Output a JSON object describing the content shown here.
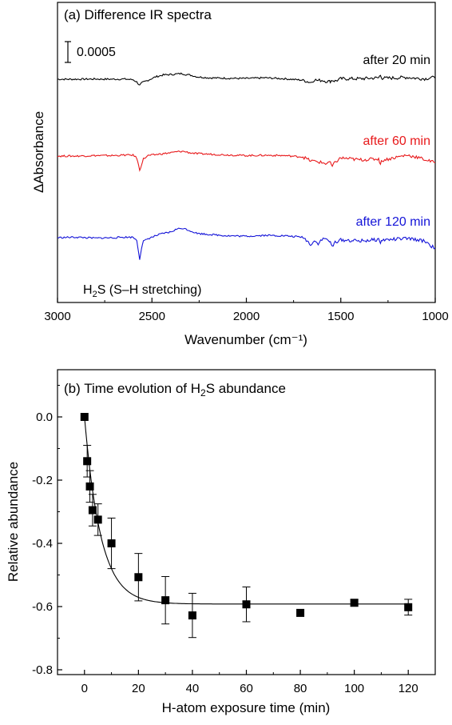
{
  "chart_data": [
    {
      "type": "line",
      "title": "(a) Difference IR spectra",
      "xlabel": "Wavenumber (cm⁻¹)",
      "ylabel": "ΔAbsorbance",
      "xlim": [
        3000,
        1000
      ],
      "x_ticks": [
        3000,
        2500,
        2000,
        1500,
        1000
      ],
      "scale_bar_label": "0.0005",
      "scale_bar_value": 0.0005,
      "y_units_per_scale_bar": 1,
      "annotation": {
        "text_main": "H",
        "text_sub": "2",
        "text_rest": "S (S–H stretching)"
      },
      "x": [
        3000,
        2900,
        2800,
        2700,
        2650,
        2600,
        2580,
        2565,
        2555,
        2545,
        2520,
        2480,
        2440,
        2400,
        2370,
        2340,
        2320,
        2300,
        2260,
        2200,
        2100,
        2000,
        1900,
        1800,
        1700,
        1660,
        1640,
        1620,
        1600,
        1580,
        1560,
        1545,
        1530,
        1500,
        1400,
        1300,
        1290,
        1280,
        1200,
        1150,
        1100,
        1050,
        1020,
        1000
      ],
      "series": [
        {
          "name": "after 20 min",
          "color": "#000000",
          "values": [
            0,
            0,
            0.02,
            0,
            0.02,
            -0.05,
            -0.3,
            -0.65,
            -0.42,
            -0.3,
            -0.1,
            0.25,
            0.45,
            0.5,
            0.55,
            0.6,
            0.5,
            0.45,
            0.25,
            0.15,
            0.1,
            0.08,
            0.15,
            0.05,
            -0.1,
            -0.35,
            -0.05,
            -0.15,
            -0.1,
            -0.2,
            -0.25,
            -0.1,
            -0.2,
            0.05,
            0.05,
            0.15,
            0.45,
            0.1,
            0.15,
            0.2,
            0.1,
            0.05,
            0.2,
            0.1
          ]
        },
        {
          "name": "after 60 min",
          "color": "#e8191b",
          "values": [
            0,
            0,
            0.05,
            0.05,
            0.1,
            0.1,
            -0.2,
            -1.5,
            -0.9,
            -0.3,
            0.05,
            0.15,
            0.25,
            0.35,
            0.45,
            0.5,
            0.45,
            0.35,
            0.25,
            0.2,
            0.12,
            0.05,
            0.08,
            0.05,
            -0.1,
            -0.5,
            -0.55,
            -0.6,
            -0.7,
            -0.8,
            -0.6,
            -1.1,
            -0.65,
            -0.2,
            -0.4,
            -0.3,
            -0.8,
            -0.45,
            -0.1,
            0.1,
            -0.1,
            -0.4,
            -0.6,
            -0.7
          ]
        },
        {
          "name": "after 120 min",
          "color": "#1414d8",
          "values": [
            0,
            0.05,
            -0.05,
            0,
            0.05,
            0.05,
            -0.3,
            -2.25,
            -1.1,
            -0.4,
            -0.1,
            0.2,
            0.45,
            0.6,
            0.9,
            1.0,
            0.9,
            0.75,
            0.45,
            0.35,
            0.2,
            0.15,
            0.25,
            0.2,
            0.05,
            -0.7,
            -0.35,
            -0.6,
            -0.2,
            -0.1,
            -0.35,
            -1.0,
            -0.45,
            -0.25,
            -0.35,
            -0.2,
            -0.5,
            -0.25,
            -0.15,
            -0.1,
            -0.2,
            -0.4,
            -0.9,
            -1.1
          ]
        }
      ]
    },
    {
      "type": "scatter",
      "title_prefix": "(b) Time evolution of H",
      "title_sub": "2",
      "title_suffix": "S abundance",
      "xlabel": "H-atom exposure time (min)",
      "ylabel": "Relative abundance",
      "xlim": [
        -10,
        130
      ],
      "ylim": [
        -0.8,
        0.15
      ],
      "x_ticks": [
        0,
        20,
        40,
        60,
        80,
        100,
        120
      ],
      "y_ticks": [
        0.0,
        -0.2,
        -0.4,
        -0.6,
        -0.8
      ],
      "y_tick_labels": [
        "0.0",
        "-0.2",
        "-0.4",
        "-0.6",
        "-0.8"
      ],
      "points": [
        {
          "x": 0,
          "y": 0.0,
          "err": 0
        },
        {
          "x": 1,
          "y": -0.14,
          "err": 0.05
        },
        {
          "x": 2,
          "y": -0.22,
          "err": 0.05
        },
        {
          "x": 3,
          "y": -0.295,
          "err": 0.05
        },
        {
          "x": 5,
          "y": -0.325,
          "err": 0.05
        },
        {
          "x": 10,
          "y": -0.4,
          "err": 0.08
        },
        {
          "x": 20,
          "y": -0.507,
          "err": 0.075
        },
        {
          "x": 30,
          "y": -0.58,
          "err": 0.075
        },
        {
          "x": 40,
          "y": -0.628,
          "err": 0.07
        },
        {
          "x": 60,
          "y": -0.593,
          "err": 0.055
        },
        {
          "x": 80,
          "y": -0.62,
          "err": 0
        },
        {
          "x": 100,
          "y": -0.588,
          "err": 0.01
        },
        {
          "x": 120,
          "y": -0.602,
          "err": 0.025
        }
      ],
      "fit": {
        "type": "exponential",
        "A": -0.592,
        "tau_min": 6.0
      }
    }
  ]
}
